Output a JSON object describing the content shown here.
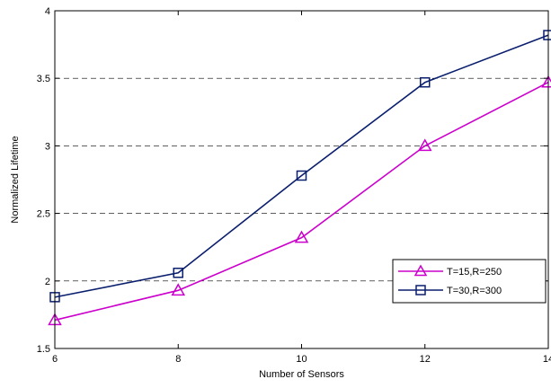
{
  "chart_data": {
    "type": "line",
    "title": "",
    "xlabel": "Number of Sensors",
    "ylabel": "Normalized Lifetime",
    "x": [
      6,
      8,
      10,
      12,
      14
    ],
    "xlim": [
      6,
      14
    ],
    "ylim": [
      1.5,
      4
    ],
    "xticks": [
      "6",
      "8",
      "10",
      "12",
      "14"
    ],
    "yticks": [
      "1.5",
      "2",
      "2.5",
      "3",
      "3.5",
      "4"
    ],
    "ytick_values": [
      1.5,
      2,
      2.5,
      3,
      3.5,
      4
    ],
    "grid": "horizontal dashed at 2, 2.5, 3, 3.5",
    "legend_position": "lower-right",
    "series": [
      {
        "name": "T=15,R=250",
        "color": "#cc00cc",
        "marker": "triangle",
        "values": [
          1.71,
          1.93,
          2.32,
          3.0,
          3.47
        ]
      },
      {
        "name": "T=30,R=300",
        "color": "#0a1e6e",
        "marker": "square",
        "values": [
          1.88,
          2.06,
          2.78,
          3.47,
          3.82
        ]
      }
    ]
  }
}
